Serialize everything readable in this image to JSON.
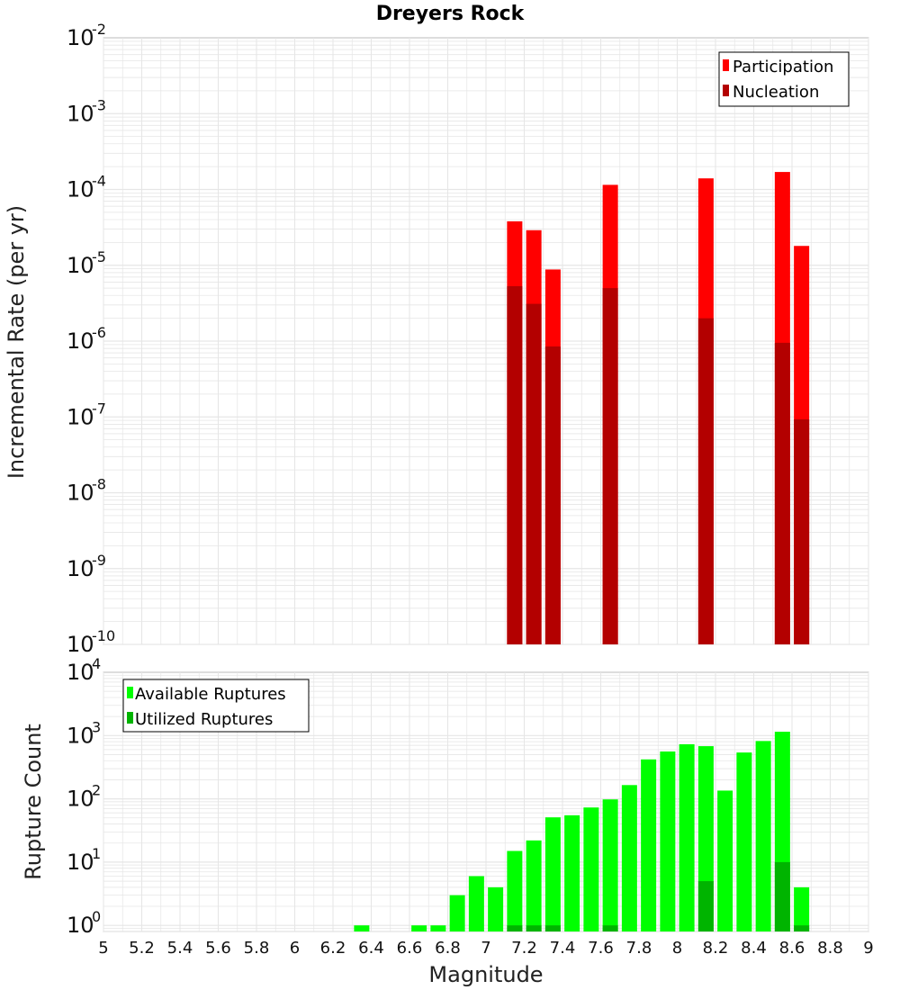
{
  "colors": {
    "participation": "#ff0000",
    "nucleation": "#b30000",
    "available": "#00ff00",
    "utilized": "#00b400",
    "grid": "#e6e6e6",
    "frame": "#bbbbbb"
  },
  "chart_data": [
    {
      "type": "bar",
      "title": "Dreyers Rock",
      "xlabel": "",
      "ylabel": "Incremental Rate (per yr)",
      "yscale": "log",
      "ylim": [
        1e-10,
        0.01
      ],
      "y_ticks": [
        {
          "base": "10",
          "exp": "-10"
        },
        {
          "base": "10",
          "exp": "-9"
        },
        {
          "base": "10",
          "exp": "-8"
        },
        {
          "base": "10",
          "exp": "-7"
        },
        {
          "base": "10",
          "exp": "-6"
        },
        {
          "base": "10",
          "exp": "-5"
        },
        {
          "base": "10",
          "exp": "-4"
        },
        {
          "base": "10",
          "exp": "-3"
        },
        {
          "base": "10",
          "exp": "-2"
        }
      ],
      "xlim": [
        5,
        9
      ],
      "legend_position": "top-right",
      "x": [
        7.15,
        7.25,
        7.35,
        7.65,
        8.15,
        8.55,
        8.65
      ],
      "series": [
        {
          "name": "Participation",
          "values": [
            3.8e-05,
            2.9e-05,
            8.8e-06,
            0.000115,
            0.00014,
            0.00017,
            1.8e-05
          ]
        },
        {
          "name": "Nucleation",
          "values": [
            5.3e-06,
            3.1e-06,
            8.5e-07,
            5e-06,
            2e-06,
            9.5e-07,
            9.3e-08
          ]
        }
      ]
    },
    {
      "type": "bar",
      "title": "",
      "xlabel": "Magnitude",
      "ylabel": "Rupture Count",
      "yscale": "log",
      "ylim": [
        0.8,
        10000
      ],
      "y_ticks": [
        {
          "base": "10",
          "exp": "0"
        },
        {
          "base": "10",
          "exp": "1"
        },
        {
          "base": "10",
          "exp": "2"
        },
        {
          "base": "10",
          "exp": "3"
        },
        {
          "base": "10",
          "exp": "4"
        }
      ],
      "xlim": [
        5,
        9
      ],
      "x_tick_labels": [
        "5",
        "5.2",
        "5.4",
        "5.6",
        "5.8",
        "6",
        "6.2",
        "6.4",
        "6.6",
        "6.8",
        "7",
        "7.2",
        "7.4",
        "7.6",
        "7.8",
        "8",
        "8.2",
        "8.4",
        "8.6",
        "8.8",
        "9"
      ],
      "legend_position": "top-left",
      "series": [
        {
          "name": "Available Ruptures",
          "x": [
            6.35,
            6.65,
            6.75,
            6.85,
            6.95,
            7.05,
            7.15,
            7.25,
            7.35,
            7.45,
            7.55,
            7.65,
            7.75,
            7.85,
            7.95,
            8.05,
            8.15,
            8.25,
            8.35,
            8.45,
            8.55,
            8.65
          ],
          "values": [
            1,
            1,
            1,
            3,
            6,
            4,
            15,
            22,
            51,
            55,
            73,
            98,
            165,
            420,
            560,
            730,
            680,
            135,
            540,
            820,
            1150,
            4
          ]
        },
        {
          "name": "Utilized Ruptures",
          "x": [
            7.15,
            7.25,
            7.35,
            7.65,
            8.15,
            8.55,
            8.65
          ],
          "values": [
            1,
            1,
            1,
            1,
            5,
            10,
            1
          ]
        }
      ]
    }
  ]
}
